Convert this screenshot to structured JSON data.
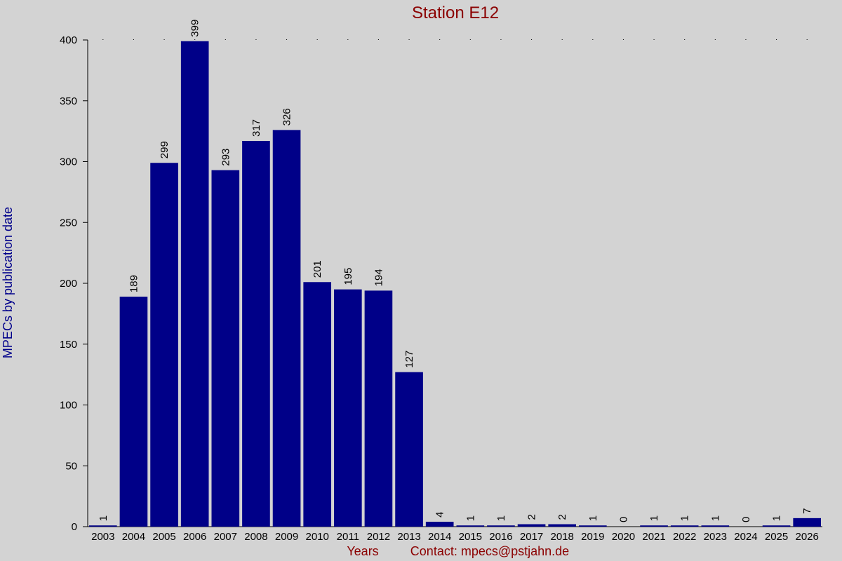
{
  "chart_data": {
    "type": "bar",
    "title": "Station E12",
    "xlabel": "Years",
    "ylabel": "MPECs by publication date",
    "contact": "Contact: mpecs@pstjahn.de",
    "categories": [
      "2003",
      "2004",
      "2005",
      "2006",
      "2007",
      "2008",
      "2009",
      "2010",
      "2011",
      "2012",
      "2013",
      "2014",
      "2015",
      "2016",
      "2017",
      "2018",
      "2019",
      "2020",
      "2021",
      "2022",
      "2023",
      "2024",
      "2025",
      "2026"
    ],
    "values": [
      1,
      189,
      299,
      399,
      293,
      317,
      326,
      201,
      195,
      194,
      127,
      4,
      1,
      1,
      2,
      2,
      1,
      0,
      1,
      1,
      1,
      0,
      1,
      7
    ],
    "ylim": [
      0,
      400
    ],
    "yticks": [
      0,
      50,
      100,
      150,
      200,
      250,
      300,
      350,
      400
    ],
    "bar_color": "#000088",
    "title_color": "#8b0000",
    "ylabel_color": "#00008b",
    "background": "#d3d3d3",
    "data_labels": true,
    "grid": "dotted top row"
  }
}
